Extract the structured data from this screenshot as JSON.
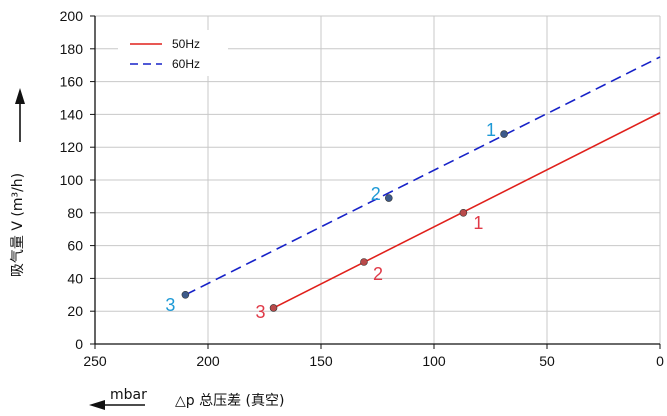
{
  "chart_data": {
    "type": "line",
    "xlabel": "△p 总压差 (真空)",
    "x_unit": "mbar",
    "ylabel": "吸气量 V (m³/h)",
    "xlim": [
      250,
      0
    ],
    "ylim": [
      0,
      200
    ],
    "x_ticks": [
      "250",
      "200",
      "150",
      "100",
      "50",
      "0"
    ],
    "y_ticks": [
      "0",
      "20",
      "40",
      "60",
      "80",
      "100",
      "120",
      "140",
      "160",
      "180",
      "200"
    ],
    "grid": true,
    "legend": "top-left",
    "series": [
      {
        "name": "50Hz",
        "color": "#e0201b",
        "dash": "solid",
        "line": [
          [
            171,
            22
          ],
          [
            0,
            141
          ]
        ],
        "points": [
          {
            "x": 171,
            "y": 22,
            "label": "3"
          },
          {
            "x": 131,
            "y": 50,
            "label": "2"
          },
          {
            "x": 87,
            "y": 80,
            "label": "1"
          }
        ]
      },
      {
        "name": "60Hz",
        "color": "#1722c8",
        "dash": "dashed",
        "line": [
          [
            210,
            30
          ],
          [
            0,
            175
          ]
        ],
        "points": [
          {
            "x": 210,
            "y": 30,
            "label": "3"
          },
          {
            "x": 120,
            "y": 89,
            "label": "2"
          },
          {
            "x": 69,
            "y": 128,
            "label": "1"
          }
        ]
      }
    ],
    "point_label_colors": {
      "50Hz": "#e03a48",
      "60Hz": "#1e9ad6"
    }
  }
}
